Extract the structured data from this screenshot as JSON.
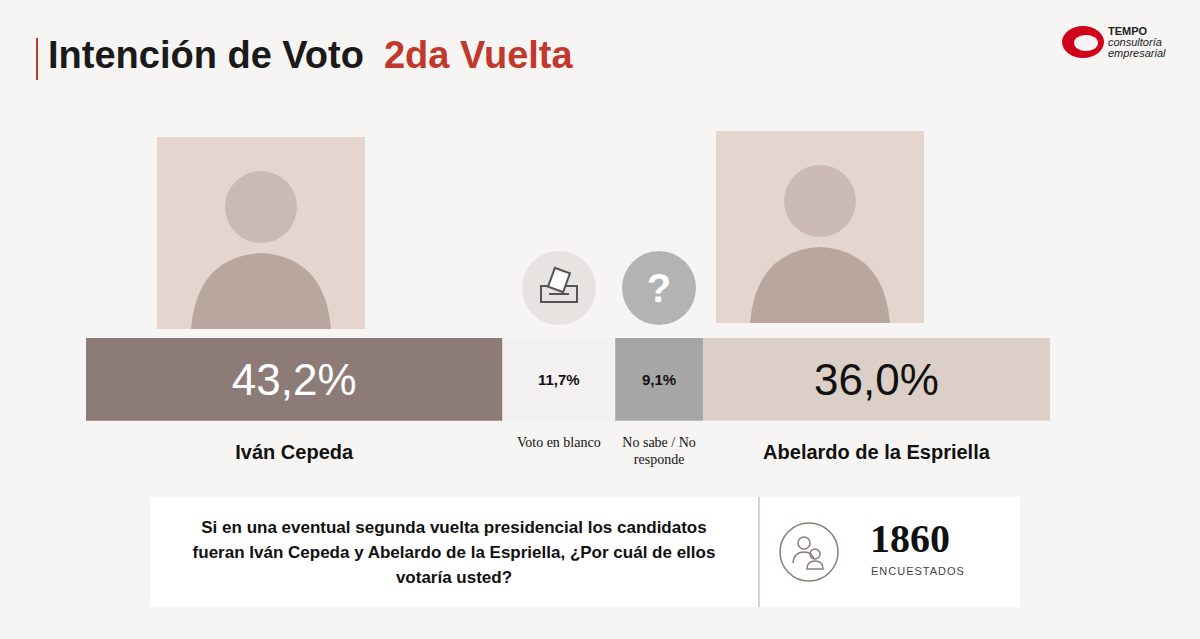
{
  "header": {
    "title": "Intención de Voto",
    "subtitle": "2da Vuelta",
    "logo": {
      "name": "TEMPO",
      "tagline": "consultoría empresarial"
    }
  },
  "chart_data": {
    "type": "bar",
    "orientation": "horizontal",
    "stacked": true,
    "categories": [
      null
    ],
    "xlim": [
      0,
      100
    ],
    "tick_labels": false,
    "grid": false,
    "data_labels": true,
    "series": [
      {
        "name": "Iván Cepeda",
        "color": "#8c7b77",
        "values": [
          43.2
        ],
        "value_labels": [
          "43,2%"
        ]
      },
      {
        "name": "Voto en blanco",
        "color": "#f3f1f0",
        "values": [
          11.7
        ],
        "value_labels": [
          "11,7%"
        ]
      },
      {
        "name": "No sabe / No responde",
        "color": "#a6a6a6",
        "values": [
          9.1
        ],
        "value_labels": [
          "9,1%"
        ]
      },
      {
        "name": "Abelardo de la Espriella",
        "color": "#dccfc8",
        "values": [
          36.0
        ],
        "value_labels": [
          "36,0%"
        ]
      }
    ]
  },
  "icons": {
    "unknown": "?"
  },
  "footer": {
    "question": "Si en una eventual segunda vuelta presidencial los candidatos fueran Iván Cepeda y Abelardo de la Espriella, ¿Por cuál de ellos votaría usted?",
    "sample_size": 1860,
    "sample_label": "ENCUESTADOS"
  }
}
